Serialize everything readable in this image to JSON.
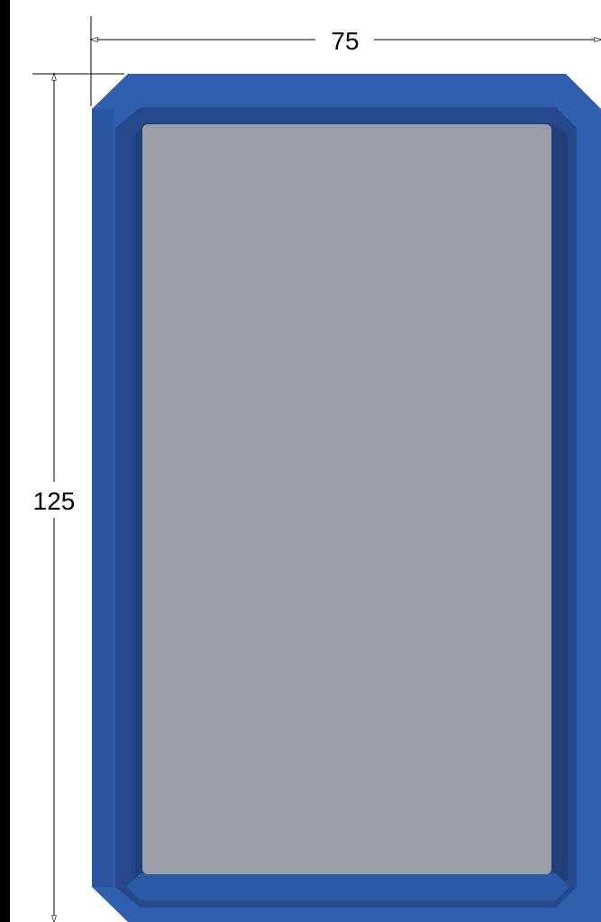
{
  "drawing": {
    "width_label": "75",
    "height_label": "125"
  },
  "colors": {
    "frame_outer": "#2f5fae",
    "frame_bevel_dark": "#25498a",
    "frame_inner_dark": "#1f3f78",
    "panel_fill": "#9b9ea6",
    "left_bar": "#000000",
    "dimension_line": "#000000"
  }
}
